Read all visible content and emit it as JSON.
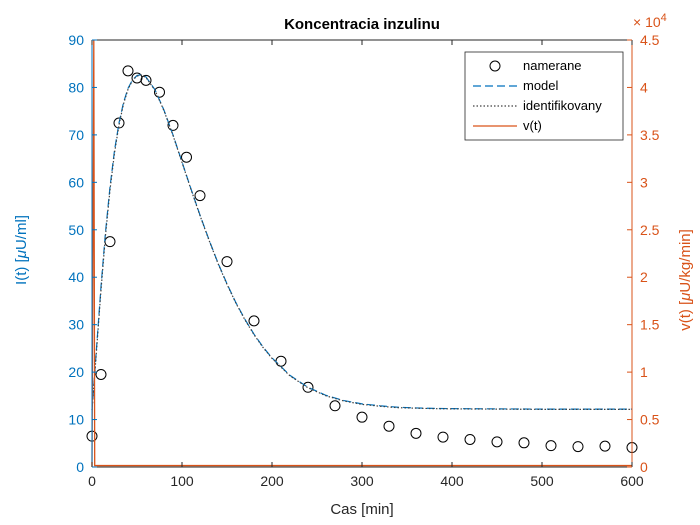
{
  "colors": {
    "left_axis": "#0072BD",
    "right_axis": "#D95319",
    "x_axis": "#262626",
    "measured_marker": "#000000",
    "model_line": "#0072BD",
    "identified_line": "#404040",
    "input_line": "#D95319"
  },
  "chart_data": {
    "type": "line",
    "title": "Koncentracia inzulinu",
    "xlabel": "Cas [min]",
    "ylabel_left_prefix": "I(t) [",
    "ylabel_left_mu": "μ",
    "ylabel_left_suffix": "U/ml]",
    "ylabel_right_prefix": "v(t) [",
    "ylabel_right_mu": "μ",
    "ylabel_right_suffix": "U/kg/min]",
    "right_axis_exponent_base": "× 10",
    "right_axis_exponent_power": "4",
    "xlim": [
      0,
      600
    ],
    "ylim_left": [
      0,
      90
    ],
    "ylim_right": [
      0,
      45000
    ],
    "x_ticks": [
      0,
      100,
      200,
      300,
      400,
      500,
      600
    ],
    "x_tick_labels": [
      "0",
      "100",
      "200",
      "300",
      "400",
      "500",
      "600"
    ],
    "y_left_ticks": [
      0,
      10,
      20,
      30,
      40,
      50,
      60,
      70,
      80,
      90
    ],
    "y_left_tick_labels": [
      "0",
      "10",
      "20",
      "30",
      "40",
      "50",
      "60",
      "70",
      "80",
      "90"
    ],
    "y_right_ticks": [
      0,
      5000,
      10000,
      15000,
      20000,
      25000,
      30000,
      35000,
      40000,
      45000
    ],
    "y_right_tick_labels": [
      "0",
      "0.5",
      "1",
      "1.5",
      "2",
      "2.5",
      "3",
      "3.5",
      "4",
      "4.5"
    ],
    "grid": false,
    "legend_position": "top-right",
    "series": [
      {
        "name": "namerane",
        "kind": "markers",
        "axis": "left",
        "x": [
          0,
          10,
          20,
          30,
          40,
          50,
          60,
          75,
          90,
          105,
          120,
          150,
          180,
          210,
          240,
          270,
          300,
          330,
          360,
          390,
          420,
          450,
          480,
          510,
          540,
          570,
          600
        ],
        "y": [
          6.5,
          19.5,
          47.5,
          72.5,
          83.5,
          82,
          81.5,
          79,
          72,
          65.3,
          57.2,
          43.3,
          30.8,
          22.3,
          16.8,
          12.9,
          10.5,
          8.6,
          7.1,
          6.3,
          5.8,
          5.3,
          5.1,
          4.5,
          4.3,
          4.4,
          4.1
        ]
      },
      {
        "name": "model",
        "kind": "dashed",
        "axis": "left",
        "x": [
          0,
          5,
          10,
          15,
          20,
          25,
          30,
          35,
          40,
          45,
          50,
          55,
          60,
          70,
          80,
          90,
          100,
          110,
          120,
          130,
          140,
          150,
          160,
          170,
          180,
          190,
          200,
          220,
          240,
          260,
          280,
          300,
          320,
          340,
          360,
          380,
          400,
          450,
          500,
          550,
          600
        ],
        "y": [
          12,
          25,
          38,
          49.5,
          59,
          66.7,
          72.5,
          76.8,
          79.8,
          81.6,
          82.5,
          82.7,
          82.2,
          79.5,
          75.2,
          70,
          64.3,
          58.6,
          53.1,
          47.9,
          43,
          38.6,
          34.6,
          31.1,
          28,
          25.3,
          23,
          19.3,
          16.8,
          15.1,
          14,
          13.3,
          12.9,
          12.6,
          12.45,
          12.35,
          12.3,
          12.25,
          12.2,
          12.2,
          12.2
        ]
      },
      {
        "name": "identifikovany",
        "kind": "dotted",
        "axis": "left",
        "x": [
          0,
          5,
          10,
          15,
          20,
          25,
          30,
          35,
          40,
          45,
          50,
          55,
          60,
          70,
          80,
          90,
          100,
          110,
          120,
          130,
          140,
          150,
          160,
          170,
          180,
          190,
          200,
          220,
          240,
          260,
          280,
          300,
          320,
          340,
          360,
          380,
          400,
          450,
          500,
          550,
          600
        ],
        "y": [
          12,
          24.5,
          37.3,
          48.8,
          58.4,
          66.2,
          72.1,
          76.5,
          79.6,
          81.5,
          82.4,
          82.6,
          82.1,
          79.4,
          75.1,
          69.9,
          64.2,
          58.5,
          53,
          47.8,
          42.9,
          38.5,
          34.5,
          31,
          27.9,
          25.2,
          22.9,
          19.2,
          16.7,
          15,
          13.9,
          13.2,
          12.8,
          12.5,
          12.4,
          12.3,
          12.25,
          12.2,
          12.15,
          12.15,
          12.15
        ]
      },
      {
        "name": "v(t)",
        "kind": "solid",
        "axis": "right",
        "x": [
          0,
          2,
          3,
          600
        ],
        "y": [
          0,
          45000,
          150,
          150
        ]
      }
    ]
  }
}
